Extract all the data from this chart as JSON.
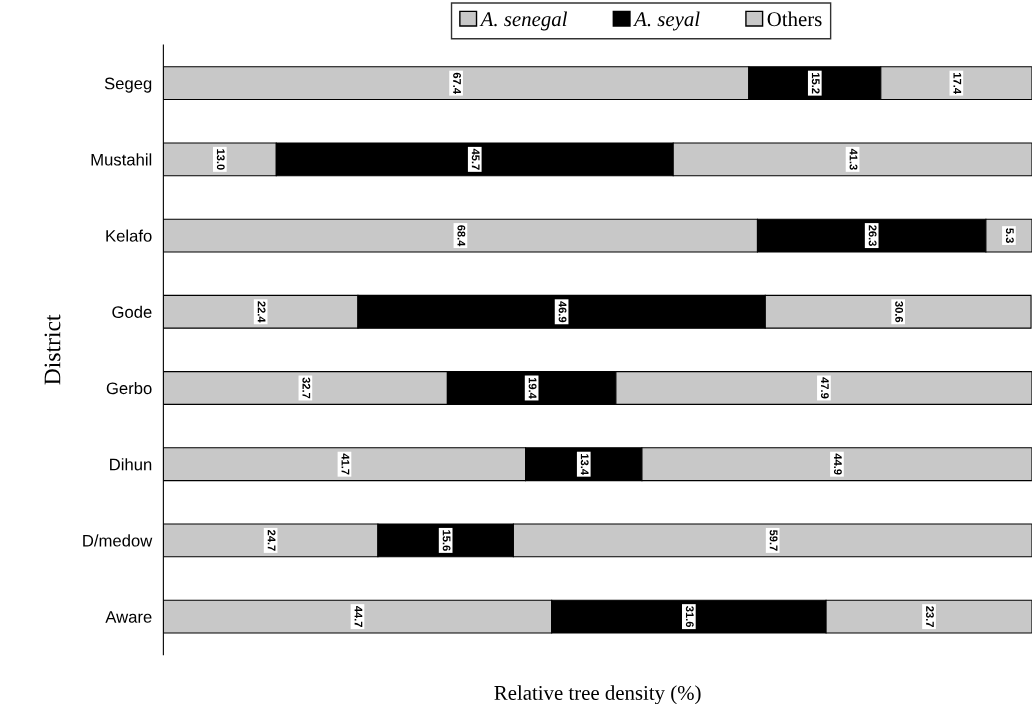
{
  "chart_data": {
    "type": "bar",
    "orientation": "horizontal",
    "stacked": true,
    "data_labels": true,
    "legend": "top",
    "grid": false,
    "tick_labels": "y",
    "xlabel": "Relative tree density (%)",
    "ylabel": "District",
    "categories": [
      "Segeg",
      "Mustahil",
      "Kelafo",
      "Gode",
      "Gerbo",
      "Dihun",
      "D/medow",
      "Aware"
    ],
    "series": [
      {
        "name": "A. senegal",
        "color": "#c8c8c8",
        "values": [
          67.4,
          13.0,
          68.4,
          22.4,
          32.7,
          41.7,
          24.7,
          44.7
        ],
        "value_labels": [
          "67.4",
          "13.0",
          "68.4",
          "22.4",
          "32.7",
          "41.7",
          "24.7",
          "44.7"
        ]
      },
      {
        "name": "A. seyal",
        "color": "#000000",
        "values": [
          15.2,
          45.7,
          26.3,
          46.9,
          19.4,
          13.4,
          15.6,
          31.6
        ]
      },
      {
        "name": "Others",
        "color": "#c8c8c8",
        "values": [
          17.4,
          41.3,
          5.3,
          30.6,
          47.9,
          44.9,
          59.7,
          23.7
        ]
      }
    ]
  }
}
